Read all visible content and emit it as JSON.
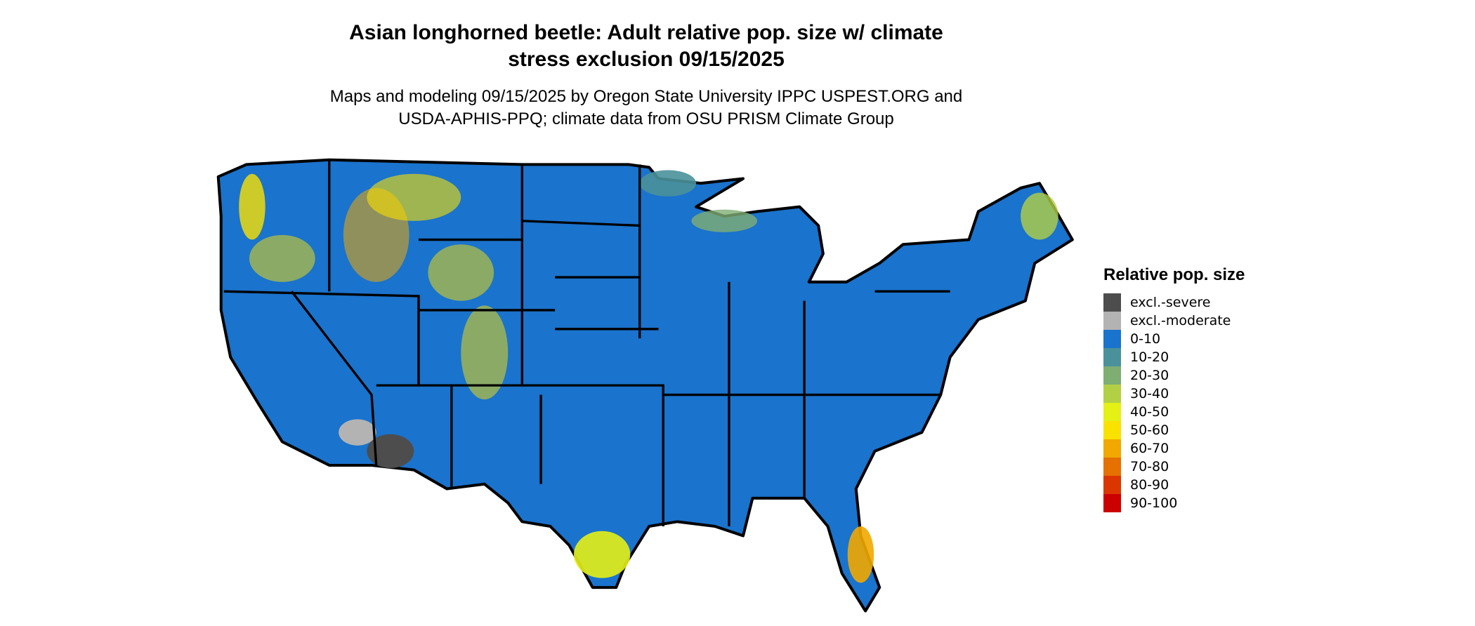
{
  "title": {
    "line1": "Asian longhorned beetle: Adult relative pop. size w/ climate",
    "line2": "stress exclusion 09/15/2025"
  },
  "subtitle": {
    "line1": "Maps and modeling 09/15/2025 by Oregon State University IPPC USPEST.ORG and",
    "line2": "USDA-APHIS-PPQ; climate data from OSU PRISM Climate Group"
  },
  "map": {
    "region": "Contiguous United States",
    "base_color": "#1a73cc",
    "border_color": "#000000"
  },
  "legend": {
    "title": "Relative pop. size",
    "items": [
      {
        "label": "excl.-severe",
        "color": "#4d4d4d"
      },
      {
        "label": "excl.-moderate",
        "color": "#b3b3b3"
      },
      {
        "label": "0-10",
        "color": "#1a73cc"
      },
      {
        "label": "10-20",
        "color": "#4a919b"
      },
      {
        "label": "20-30",
        "color": "#7fae73"
      },
      {
        "label": "30-40",
        "color": "#b3d045"
      },
      {
        "label": "40-50",
        "color": "#e5f014"
      },
      {
        "label": "50-60",
        "color": "#f9e100"
      },
      {
        "label": "60-70",
        "color": "#f1a800"
      },
      {
        "label": "70-80",
        "color": "#e67000"
      },
      {
        "label": "80-90",
        "color": "#db3600"
      },
      {
        "label": "90-100",
        "color": "#cc0000"
      }
    ]
  }
}
